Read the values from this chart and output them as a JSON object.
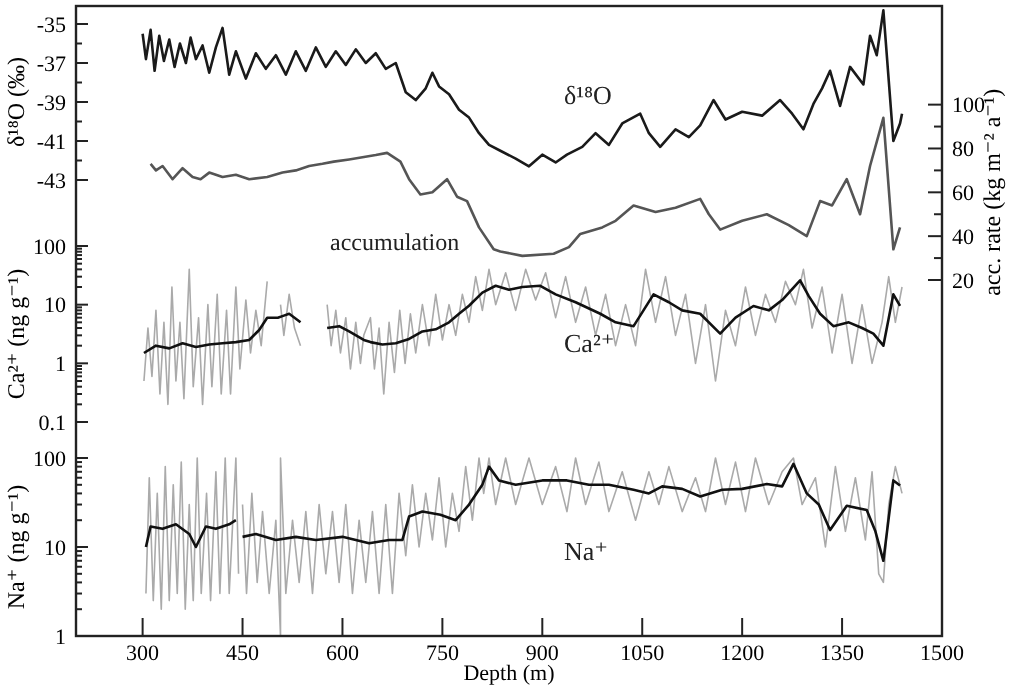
{
  "chart_data": [
    {
      "type": "line",
      "ylabel": "δ¹⁸O (‰)",
      "y2label": "acc. rate (kg m⁻² a⁻¹)",
      "xlim": [
        200,
        1500
      ],
      "ylim": [
        -43,
        -34
      ],
      "yticks": [
        -35,
        {
          "value": -36,
          "label": null
        },
        -37,
        {
          "value": -38,
          "label": null
        },
        -39,
        {
          "value": -40,
          "label": null
        },
        -41,
        {
          "value": -42,
          "label": null
        },
        -43
      ],
      "y2lim": [
        20,
        145
      ],
      "y2ticks": [
        20,
        {
          "value": 30,
          "label": null
        },
        40,
        {
          "value": 50,
          "label": null
        },
        60,
        {
          "value": 70,
          "label": null
        },
        80,
        {
          "value": 90,
          "label": null
        },
        100
      ],
      "tick_labels": "y",
      "series": [
        {
          "name": "δ¹⁸O",
          "color": "#1a1a1a",
          "x": [
            300,
            305,
            312,
            318,
            325,
            332,
            340,
            348,
            356,
            365,
            372,
            380,
            390,
            400,
            410,
            420,
            430,
            440,
            455,
            470,
            485,
            500,
            515,
            530,
            545,
            560,
            575,
            590,
            605,
            620,
            635,
            650,
            665,
            680,
            695,
            710,
            725,
            735,
            745,
            760,
            775,
            790,
            805,
            820,
            837,
            860,
            880,
            900,
            920,
            937,
            960,
            980,
            1000,
            1020,
            1047,
            1060,
            1077,
            1100,
            1120,
            1137,
            1157,
            1175,
            1200,
            1230,
            1257,
            1275,
            1292,
            1307,
            1320,
            1332,
            1347,
            1362,
            1382,
            1392,
            1402,
            1412,
            1427,
            1437,
            1440
          ],
          "values": [
            -35.5,
            -36.8,
            -35.3,
            -37.4,
            -35.6,
            -36.9,
            -35.8,
            -37.2,
            -36.0,
            -37.0,
            -35.7,
            -36.8,
            -36.1,
            -37.5,
            -36.2,
            -35.2,
            -37.6,
            -36.4,
            -37.8,
            -36.5,
            -37.3,
            -36.6,
            -37.6,
            -36.4,
            -37.4,
            -36.2,
            -37.2,
            -36.4,
            -37.1,
            -36.3,
            -37.0,
            -36.5,
            -37.3,
            -37.0,
            -38.5,
            -38.9,
            -38.3,
            -37.5,
            -38.2,
            -38.6,
            -39.4,
            -39.8,
            -40.6,
            -41.2,
            -41.5,
            -41.9,
            -42.3,
            -41.7,
            -42.1,
            -41.7,
            -41.3,
            -40.6,
            -41.2,
            -40.1,
            -39.6,
            -40.6,
            -41.3,
            -40.4,
            -40.8,
            -40.2,
            -38.9,
            -39.9,
            -39.5,
            -39.7,
            -38.9,
            -39.6,
            -40.4,
            -39.1,
            -38.3,
            -37.4,
            -39.2,
            -37.2,
            -38.1,
            -35.6,
            -36.6,
            -34.3,
            -41.0,
            -40.1,
            -39.6
          ]
        },
        {
          "name": "accumulation",
          "color": "#555555",
          "axis": "y2",
          "x": [
            312,
            320,
            330,
            345,
            360,
            375,
            387,
            400,
            420,
            440,
            460,
            487,
            510,
            530,
            550,
            570,
            587,
            610,
            630,
            650,
            667,
            687,
            700,
            717,
            735,
            757,
            772,
            787,
            805,
            827,
            837,
            870,
            917,
            940,
            957,
            990,
            1010,
            1037,
            1070,
            1100,
            1137,
            1150,
            1167,
            1200,
            1237,
            1270,
            1297,
            1317,
            1335,
            1357,
            1377,
            1392,
            1412,
            1427,
            1437
          ],
          "values": [
            73,
            70,
            72,
            66,
            71,
            67,
            66,
            69,
            67,
            68,
            66,
            67,
            69,
            70,
            72,
            73,
            74,
            75,
            76,
            77,
            78,
            74,
            66,
            59,
            60,
            66,
            58,
            56,
            44,
            34,
            33,
            31,
            32,
            35,
            41,
            44,
            47,
            54,
            51,
            53,
            57,
            50,
            43,
            47,
            50,
            45,
            40,
            56,
            54,
            66,
            50,
            72,
            94,
            34,
            44
          ]
        }
      ]
    },
    {
      "type": "line",
      "ylabel": "Ca²⁺ (ng g⁻¹)",
      "xlim": [
        200,
        1500
      ],
      "ylim": [
        0.1,
        100
      ],
      "log": true,
      "yticks": [
        0.1,
        {
          "value": 0.2,
          "label": null
        },
        {
          "value": 0.3,
          "label": null
        },
        {
          "value": 0.4,
          "label": null
        },
        {
          "value": 0.5,
          "label": null
        },
        {
          "value": 0.6,
          "label": null
        },
        {
          "value": 0.7,
          "label": null
        },
        {
          "value": 0.8,
          "label": null
        },
        {
          "value": 0.9,
          "label": null
        },
        1,
        {
          "value": 2,
          "label": null
        },
        {
          "value": 3,
          "label": null
        },
        {
          "value": 4,
          "label": null
        },
        {
          "value": 5,
          "label": null
        },
        {
          "value": 6,
          "label": null
        },
        {
          "value": 7,
          "label": null
        },
        {
          "value": 8,
          "label": null
        },
        {
          "value": 9,
          "label": null
        },
        10,
        {
          "value": 20,
          "label": null
        },
        {
          "value": 30,
          "label": null
        },
        {
          "value": 40,
          "label": null
        },
        {
          "value": 50,
          "label": null
        },
        {
          "value": 60,
          "label": null
        },
        {
          "value": 70,
          "label": null
        },
        {
          "value": 80,
          "label": null
        },
        {
          "value": 90,
          "label": null
        },
        100
      ],
      "tick_labels": "y",
      "series": [
        {
          "color": "#aaaaaa",
          "x": [
            302,
            308,
            314,
            320,
            326,
            332,
            338,
            344,
            350,
            356,
            362,
            370,
            376,
            384,
            390,
            398,
            404,
            412,
            418,
            426,
            432,
            440,
            446,
            455,
            462,
            470,
            478,
            487,
            495,
            507,
            512,
            520,
            528,
            537,
            550,
            577,
            583,
            590,
            597,
            605,
            612,
            620,
            627,
            632,
            642,
            648,
            655,
            662,
            670,
            678,
            686,
            694,
            702,
            710,
            720,
            730,
            740,
            750,
            760,
            770,
            780,
            790,
            800,
            810,
            820,
            830,
            845,
            860,
            875,
            890,
            905,
            920,
            935,
            950,
            965,
            980,
            995,
            1010,
            1025,
            1040,
            1055,
            1070,
            1085,
            1100,
            1115,
            1130,
            1145,
            1160,
            1175,
            1190,
            1205,
            1220,
            1235,
            1250,
            1265,
            1280,
            1292,
            1305,
            1320,
            1335,
            1350,
            1365,
            1380,
            1395,
            1410,
            1420,
            1430,
            1440
          ],
          "values": [
            0.5,
            4,
            0.6,
            8,
            0.3,
            5,
            0.2,
            20,
            0.5,
            5,
            0.25,
            40,
            0.4,
            6,
            0.2,
            10,
            0.4,
            15,
            0.3,
            8,
            0.3,
            20,
            0.8,
            12,
            1.5,
            8,
            2,
            25,
            null,
            10,
            3,
            15,
            4,
            2,
            null,
            10,
            2,
            8,
            1.5,
            6,
            0.8,
            5,
            1,
            3,
            6,
            0.8,
            4,
            0.3,
            5,
            0.7,
            8,
            1,
            7,
            1.5,
            10,
            2,
            15,
            2.5,
            10,
            3,
            15,
            5,
            30,
            8,
            40,
            10,
            35,
            8,
            40,
            12,
            35,
            6,
            30,
            5,
            20,
            3,
            15,
            2,
            10,
            2,
            40,
            5,
            30,
            3,
            15,
            1,
            10,
            0.5,
            8,
            2,
            20,
            3,
            15,
            5,
            25,
            10,
            40,
            4,
            20,
            1.5,
            15,
            1,
            10,
            1,
            5,
            30,
            5,
            20
          ]
        },
        {
          "name": "Ca²⁺",
          "color": "#111111",
          "x": [
            302,
            320,
            340,
            360,
            380,
            400,
            420,
            440,
            460,
            475,
            487,
            503,
            512,
            520,
            528,
            537,
            550,
            577,
            595,
            610,
            632,
            642,
            660,
            680,
            700,
            720,
            740,
            760,
            775,
            790,
            810,
            830,
            850,
            870,
            897,
            920,
            950,
            987,
            1010,
            1037,
            1067,
            1090,
            1110,
            1137,
            1167,
            1190,
            1217,
            1240,
            1260,
            1287,
            1300,
            1317,
            1337,
            1360,
            1380,
            1397,
            1412,
            1427,
            1437
          ],
          "values": [
            1.5,
            2,
            1.8,
            2.2,
            1.9,
            2.1,
            2.2,
            2.3,
            2.5,
            3.7,
            6,
            6,
            6.5,
            7,
            6,
            5,
            null,
            4,
            4.3,
            3.5,
            2.5,
            2.3,
            2.1,
            2.2,
            2.6,
            3.5,
            3.8,
            5,
            7,
            9.6,
            16,
            21,
            18,
            20,
            21,
            15,
            11,
            7,
            5,
            4.3,
            15,
            11,
            8,
            7,
            3.2,
            6,
            9.5,
            8,
            12,
            26,
            14,
            7,
            4.3,
            5,
            4,
            3.2,
            2,
            15,
            9.5
          ]
        }
      ]
    },
    {
      "type": "line",
      "ylabel": "Na⁺ (ng g⁻¹)",
      "xlabel": "Depth (m)",
      "xlim": [
        200,
        1500
      ],
      "xticks": [
        300,
        450,
        600,
        750,
        900,
        1050,
        1200,
        1350,
        1500
      ],
      "ylim": [
        1,
        100
      ],
      "log": true,
      "yticks": [
        1,
        {
          "value": 2,
          "label": null
        },
        {
          "value": 3,
          "label": null
        },
        {
          "value": 4,
          "label": null
        },
        {
          "value": 5,
          "label": null
        },
        {
          "value": 6,
          "label": null
        },
        {
          "value": 7,
          "label": null
        },
        {
          "value": 8,
          "label": null
        },
        {
          "value": 9,
          "label": null
        },
        10,
        {
          "value": 20,
          "label": null
        },
        {
          "value": 30,
          "label": null
        },
        {
          "value": 40,
          "label": null
        },
        {
          "value": 50,
          "label": null
        },
        {
          "value": 60,
          "label": null
        },
        {
          "value": 70,
          "label": null
        },
        {
          "value": 80,
          "label": null
        },
        {
          "value": 90,
          "label": null
        },
        100
      ],
      "series": [
        {
          "color": "#aaaaaa",
          "x": [
            305,
            310,
            316,
            322,
            328,
            334,
            340,
            346,
            352,
            358,
            364,
            370,
            376,
            382,
            388,
            396,
            402,
            410,
            416,
            424,
            430,
            440,
            444,
            445,
            450,
            456,
            464,
            472,
            480,
            490,
            500,
            507,
            507,
            515,
            525,
            535,
            545,
            555,
            565,
            575,
            585,
            595,
            605,
            615,
            625,
            635,
            645,
            655,
            665,
            675,
            685,
            695,
            705,
            715,
            725,
            735,
            745,
            755,
            765,
            775,
            785,
            795,
            805,
            812,
            820,
            830,
            845,
            860,
            880,
            900,
            920,
            937,
            950,
            965,
            985,
            1000,
            1020,
            1040,
            1060,
            1075,
            1090,
            1110,
            1130,
            1145,
            1160,
            1175,
            1190,
            1205,
            1220,
            1240,
            1260,
            1277,
            1290,
            1310,
            1325,
            1340,
            1355,
            1370,
            1385,
            1395,
            1405,
            1412,
            1420,
            1430,
            1440
          ],
          "values": [
            3,
            60,
            2.5,
            40,
            2,
            80,
            2.5,
            50,
            3,
            90,
            2,
            30,
            2.5,
            100,
            3,
            40,
            2.5,
            70,
            3,
            100,
            3,
            100,
            5,
            null,
            30,
            3,
            40,
            4,
            25,
            3,
            20,
            1,
            100,
            3,
            20,
            4,
            25,
            3,
            30,
            5,
            25,
            4,
            30,
            3,
            20,
            4,
            25,
            3,
            30,
            3,
            40,
            8,
            50,
            10,
            40,
            12,
            60,
            10,
            40,
            15,
            80,
            20,
            100,
            40,
            100,
            30,
            100,
            30,
            100,
            30,
            80,
            25,
            100,
            30,
            90,
            25,
            70,
            20,
            70,
            30,
            80,
            25,
            60,
            25,
            100,
            30,
            90,
            25,
            100,
            30,
            70,
            100,
            30,
            60,
            10,
            80,
            15,
            60,
            12,
            70,
            5,
            4,
            30,
            80,
            40
          ]
        },
        {
          "name": "Na⁺",
          "color": "#111111",
          "x": [
            305,
            312,
            330,
            350,
            370,
            380,
            395,
            410,
            430,
            440,
            445,
            450,
            470,
            500,
            530,
            560,
            600,
            640,
            670,
            690,
            700,
            720,
            747,
            770,
            790,
            810,
            820,
            835,
            860,
            900,
            937,
            970,
            1000,
            1037,
            1060,
            1080,
            1110,
            1137,
            1170,
            1200,
            1237,
            1260,
            1277,
            1297,
            1315,
            1332,
            1357,
            1387,
            1400,
            1412,
            1427,
            1437
          ],
          "values": [
            10,
            17,
            16,
            18,
            14,
            10,
            17,
            16,
            18,
            20,
            null,
            13,
            14,
            12,
            13,
            12,
            13,
            11,
            12,
            12,
            22,
            25,
            23,
            20,
            30,
            50,
            80,
            56,
            50,
            56,
            56,
            50,
            50,
            44,
            40,
            48,
            45,
            37,
            44,
            45,
            51,
            48,
            86,
            40,
            30,
            15.5,
            29,
            26,
            15,
            7,
            56,
            49
          ]
        }
      ]
    }
  ]
}
